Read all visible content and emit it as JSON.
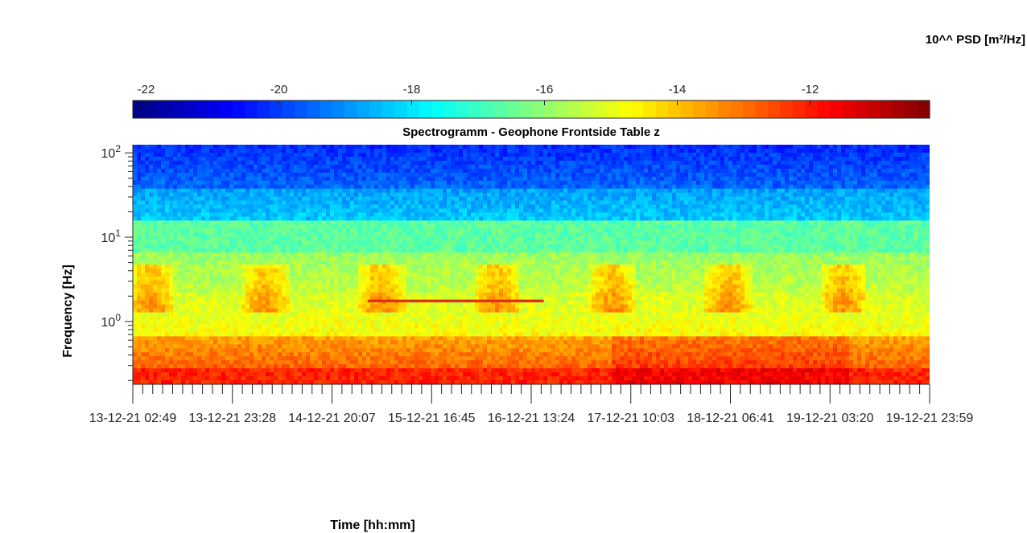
{
  "chart_data": {
    "type": "heatmap",
    "title": "Spectrogramm - Geophone Frontside Table z",
    "xlabel": "Time [hh:mm]",
    "ylabel": "Frequency [Hz]",
    "y_scale": "log",
    "ylim": [
      0.18,
      125
    ],
    "y_ticks": [
      {
        "value": 1,
        "base": "10",
        "exp": "0"
      },
      {
        "value": 10,
        "base": "10",
        "exp": "1"
      },
      {
        "value": 100,
        "base": "10",
        "exp": "2"
      }
    ],
    "x_tick_labels": [
      "13-12-21 02:49",
      "13-12-21 23:28",
      "14-12-21 20:07",
      "15-12-21 16:45",
      "16-12-21 13:24",
      "17-12-21 10:03",
      "18-12-21 06:41",
      "19-12-21 03:20",
      "19-12-21 23:59"
    ],
    "colorbar": {
      "label": "10^^ PSD [m²/Hz]",
      "colormap": "jet",
      "range": [
        -22.2,
        -10.2
      ],
      "ticks": [
        -22,
        -20,
        -18,
        -16,
        -14,
        -12
      ]
    },
    "feature_summary": {
      "high_freq_band_level_log10": -19.5,
      "mid_freq_band_level_log10": -16.5,
      "low_freq_band_level_log10": -12.2,
      "horizontal_line": {
        "frequency_hz": 1.75,
        "x_start": "15-12-21 03:30",
        "x_end": "16-12-21 16:00",
        "level_log10": -12
      }
    }
  }
}
